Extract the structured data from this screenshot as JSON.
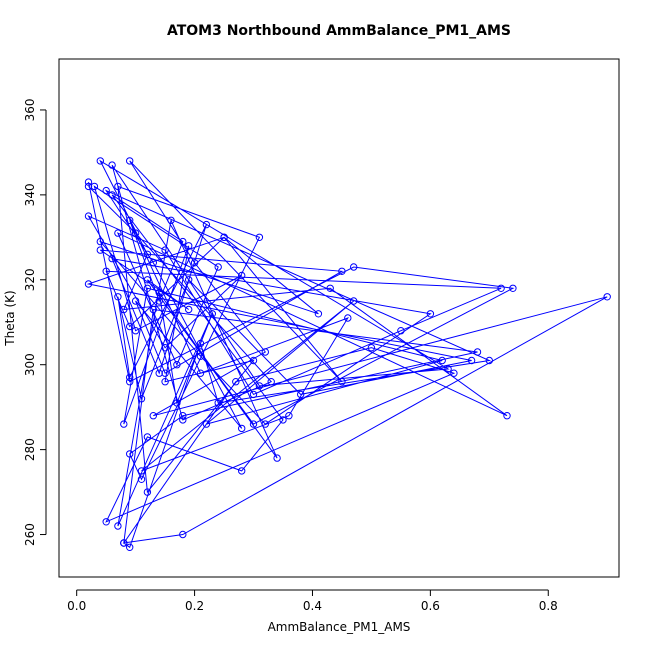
{
  "chart_data": {
    "type": "line",
    "title": "ATOM3 Northbound AmmBalance_PM1_AMS",
    "xlabel": "AmmBalance_PM1_AMS",
    "ylabel": "Theta (K)",
    "xlim": [
      -0.03,
      0.92
    ],
    "ylim": [
      250,
      372
    ],
    "x_ticks": [
      "0.0",
      "0.2",
      "0.4",
      "0.6",
      "0.8"
    ],
    "y_ticks": [
      "260",
      "280",
      "300",
      "320",
      "340",
      "360"
    ],
    "grid": false,
    "legend": "none",
    "series_color": "#0000ff",
    "marker": "open-circle",
    "series": [
      {
        "x": [
          0.02,
          0.1,
          0.33,
          0.18,
          0.06,
          0.31,
          0.63,
          0.04,
          0.12,
          0.08,
          0.43,
          0.73,
          0.07,
          0.17,
          0.24,
          0.03,
          0.1,
          0.28,
          0.15,
          0.02,
          0.15,
          0.3,
          0.55,
          0.72,
          0.05,
          0.09,
          0.25,
          0.41,
          0.04,
          0.21,
          0.32,
          0.6,
          0.06,
          0.14,
          0.22,
          0.09,
          0.07,
          0.11,
          0.19,
          0.38,
          0.67,
          0.02,
          0.25,
          0.45,
          0.09,
          0.2,
          0.32,
          0.13,
          0.9,
          0.18,
          0.08,
          0.27,
          0.5,
          0.64,
          0.05,
          0.12,
          0.28,
          0.35,
          0.06,
          0.18,
          0.14,
          0.09,
          0.21,
          0.46,
          0.36,
          0.11,
          0.47,
          0.22,
          0.62,
          0.12,
          0.08,
          0.19,
          0.15,
          0.3,
          0.12,
          0.07,
          0.31,
          0.11,
          0.09,
          0.18,
          0.68,
          0.13,
          0.08,
          0.09,
          0.21,
          0.24,
          0.7,
          0.05,
          0.13,
          0.28,
          0.1,
          0.15,
          0.45,
          0.04,
          0.19,
          0.12,
          0.34,
          0.16,
          0.07,
          0.23,
          0.17,
          0.14,
          0.21,
          0.3,
          0.74,
          0.47,
          0.09,
          0.02
        ],
        "y": [
          342,
          331,
          296,
          287,
          347,
          295,
          299,
          348,
          326,
          313,
          318,
          288,
          331,
          300,
          323,
          342,
          308,
          321,
          304,
          335,
          327,
          293,
          308,
          318,
          322,
          309,
          330,
          312,
          329,
          302,
          286,
          312,
          325,
          298,
          333,
          297,
          316,
          292,
          320,
          293,
          301,
          319,
          330,
          296,
          348,
          324,
          303,
          288,
          316,
          260,
          258,
          296,
          304,
          298,
          263,
          283,
          275,
          287,
          340,
          329,
          315,
          334,
          298,
          311,
          288,
          275,
          315,
          286,
          301,
          318,
          286,
          328,
          296,
          301,
          270,
          342,
          330,
          273,
          279,
          288,
          303,
          313,
          258,
          257,
          305,
          291,
          301,
          341,
          324,
          285,
          315,
          298,
          322,
          327,
          313,
          320,
          278,
          334,
          262,
          312,
          291,
          317,
          303,
          286,
          318,
          323,
          296,
          343
        ]
      }
    ]
  }
}
